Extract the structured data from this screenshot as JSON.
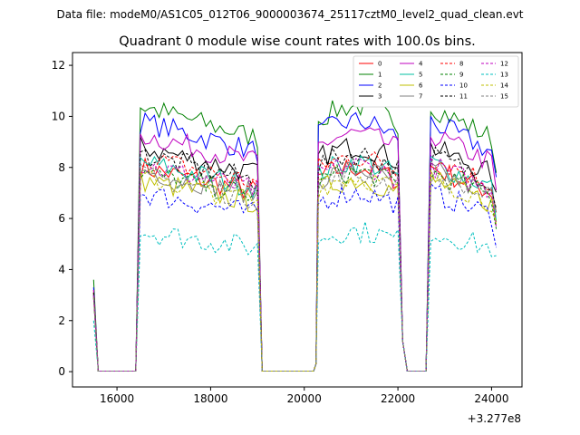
{
  "figure": {
    "suptitle": "Data file: modeM0/AS1C05_012T06_9000003674_25117cztM0_level2_quad_clean.evt"
  },
  "chart_data": {
    "type": "line",
    "title": "Quadrant 0 module wise count rates with 100.0s bins.",
    "xlabel": "",
    "ylabel": "",
    "x_offset_label": "+3.277e8",
    "x_offset": 327700000,
    "xlim": [
      15050,
      24650
    ],
    "ylim": [
      -0.6,
      12.5
    ],
    "x_ticks": [
      16000,
      18000,
      20000,
      22000,
      24000
    ],
    "x_tick_labels": [
      "16000",
      "18000",
      "20000",
      "22000",
      "24000"
    ],
    "y_ticks": [
      0,
      2,
      4,
      6,
      8,
      10,
      12
    ],
    "y_tick_labels": [
      "0",
      "2",
      "4",
      "6",
      "8",
      "10",
      "12"
    ],
    "grid": false,
    "legend_placement": "top-right",
    "legend_columns": 4,
    "segments": [
      {
        "start": 15500,
        "end": 19100
      },
      {
        "start": 19150,
        "end": 22050
      },
      {
        "start": 22100,
        "end": 24100
      }
    ],
    "series": [
      {
        "name": "0",
        "color": "#ff0000",
        "dash": "solid",
        "peak": 8.0,
        "start": 3.2
      },
      {
        "name": "1",
        "color": "#008000",
        "dash": "solid",
        "peak": 10.4,
        "start": 3.6
      },
      {
        "name": "2",
        "color": "#0000ff",
        "dash": "solid",
        "peak": 9.8,
        "start": 3.3
      },
      {
        "name": "3",
        "color": "#000000",
        "dash": "solid",
        "peak": 8.8,
        "start": 3.1
      },
      {
        "name": "4",
        "color": "#bf00bf",
        "dash": "solid",
        "peak": 9.3,
        "start": 3.2
      },
      {
        "name": "5",
        "color": "#00bfa0",
        "dash": "solid",
        "peak": 8.2,
        "start": 3.0
      },
      {
        "name": "6",
        "color": "#bfbf00",
        "dash": "solid",
        "peak": 7.5,
        "start": 2.9
      },
      {
        "name": "7",
        "color": "#808080",
        "dash": "solid",
        "peak": 7.9,
        "start": 3.0
      },
      {
        "name": "8",
        "color": "#ff0000",
        "dash": "dashed",
        "peak": 8.4,
        "start": 3.1
      },
      {
        "name": "9",
        "color": "#008000",
        "dash": "dashed",
        "peak": 7.8,
        "start": 3.0
      },
      {
        "name": "10",
        "color": "#0000ff",
        "dash": "dashed",
        "peak": 7.0,
        "start": 2.9
      },
      {
        "name": "11",
        "color": "#000000",
        "dash": "dashed",
        "peak": 8.5,
        "start": 3.1
      },
      {
        "name": "12",
        "color": "#bf00bf",
        "dash": "dashed",
        "peak": 8.1,
        "start": 3.0
      },
      {
        "name": "13",
        "color": "#00bfbf",
        "dash": "dashed",
        "peak": 5.5,
        "start": 2.0
      },
      {
        "name": "14",
        "color": "#bfbf00",
        "dash": "dashed",
        "peak": 7.6,
        "start": 2.9
      },
      {
        "name": "15",
        "color": "#808080",
        "dash": "dashed",
        "peak": 7.7,
        "start": 2.9
      }
    ]
  }
}
